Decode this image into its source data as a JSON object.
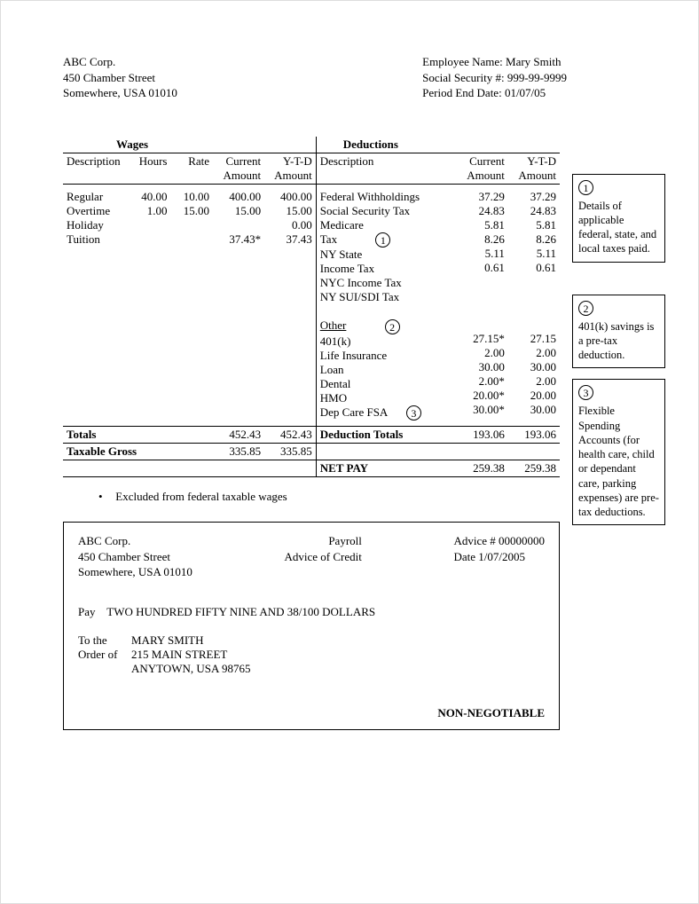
{
  "company": {
    "name": "ABC Corp.",
    "street": "450 Chamber Street",
    "citystate": "Somewhere, USA 01010"
  },
  "employee": {
    "name_label": "Employee Name: Mary Smith",
    "ssn_label": "Social Security #: 999-99-9999",
    "period_label": "Period End Date: 01/07/05"
  },
  "sections": {
    "wages": "Wages",
    "deductions": "Deductions",
    "description": "Description",
    "hours": "Hours",
    "rate": "Rate",
    "current_amount1": "Current",
    "current_amount2": "Amount",
    "ytd1": "Y-T-D",
    "ytd2": "Amount",
    "other": "Other"
  },
  "wages": [
    {
      "desc": "Regular",
      "hours": "40.00",
      "rate": "10.00",
      "cur": "400.00",
      "ytd": "400.00"
    },
    {
      "desc": "Overtime",
      "hours": "1.00",
      "rate": "15.00",
      "cur": "15.00",
      "ytd": "15.00"
    },
    {
      "desc": "Holiday",
      "hours": "",
      "rate": "",
      "cur": "",
      "ytd": "0.00"
    },
    {
      "desc": "Tuition",
      "hours": "",
      "rate": "",
      "cur": "37.43*",
      "ytd": "37.43"
    }
  ],
  "deductions_tax": [
    {
      "desc": "Federal Withholdings",
      "cur": "37.29",
      "ytd": "37.29"
    },
    {
      "desc": "Social Security Tax",
      "cur": "24.83",
      "ytd": "24.83"
    },
    {
      "desc": "Medicare",
      "cur": "5.81",
      "ytd": "5.81"
    },
    {
      "desc": "Tax",
      "cur": "8.26",
      "ytd": "8.26"
    },
    {
      "desc": "NY State",
      "cur": "5.11",
      "ytd": "5.11"
    },
    {
      "desc": "Income Tax",
      "cur": "0.61",
      "ytd": "0.61"
    },
    {
      "desc": "NYC Income Tax",
      "cur": "",
      "ytd": ""
    },
    {
      "desc": "NY SUI/SDI Tax",
      "cur": "",
      "ytd": ""
    }
  ],
  "deductions_other": [
    {
      "desc": "401(k)",
      "cur": "27.15*",
      "ytd": "27.15"
    },
    {
      "desc": "Life Insurance",
      "cur": "2.00",
      "ytd": "2.00"
    },
    {
      "desc": "Loan",
      "cur": "30.00",
      "ytd": "30.00"
    },
    {
      "desc": "Dental",
      "cur": "2.00*",
      "ytd": "2.00"
    },
    {
      "desc": "HMO",
      "cur": "20.00*",
      "ytd": "20.00"
    },
    {
      "desc": "Dep Care FSA",
      "cur": "30.00*",
      "ytd": "30.00"
    }
  ],
  "totals": {
    "totals_label": "Totals",
    "wage_cur": "452.43",
    "wage_ytd": "452.43",
    "ded_label": "Deduction Totals",
    "ded_cur": "193.06",
    "ded_ytd": "193.06",
    "taxable_label": "Taxable Gross",
    "taxable_cur": "335.85",
    "taxable_ytd": "335.85",
    "netpay_label": "NET PAY",
    "net_cur": "259.38",
    "net_ytd": "259.38"
  },
  "footnote": "Excluded from federal taxable wages",
  "advice": {
    "company_name": "ABC Corp.",
    "company_street": "450 Chamber Street",
    "company_city": "Somewhere, USA 01010",
    "payroll_label": "Payroll",
    "credit_label": "Advice of Credit",
    "advice_num": "Advice # 00000000",
    "date": "Date 1/07/2005",
    "pay_label": "Pay",
    "pay_words": "TWO HUNDRED FIFTY NINE AND 38/100 DOLLARS",
    "to_label": "To the",
    "order_label": "Order of",
    "payee_name": "MARY SMITH",
    "payee_street": "215 MAIN STREET",
    "payee_city": "ANYTOWN, USA  98765",
    "nonneg": "NON-NEGOTIABLE"
  },
  "annotations": {
    "a1_num": "1",
    "a1_text": "Details of applicable federal, state, and local taxes paid.",
    "a2_num": "2",
    "a2_text": "401(k) savings is a pre-tax deduction.",
    "a3_num": "3",
    "a3_text": "Flexible Spending Accounts (for health care, child or dependant care, parking expenses) are pre-tax deductions."
  }
}
